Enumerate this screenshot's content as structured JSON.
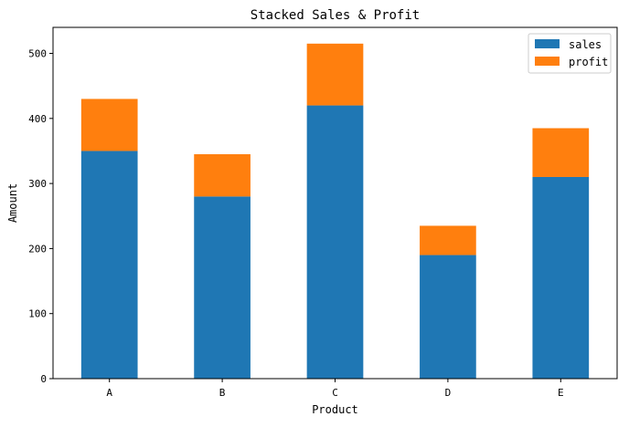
{
  "chart_data": {
    "type": "bar",
    "stacked": true,
    "title": "Stacked Sales & Profit",
    "xlabel": "Product",
    "ylabel": "Amount",
    "categories": [
      "A",
      "B",
      "C",
      "D",
      "E"
    ],
    "series": [
      {
        "name": "sales",
        "values": [
          350,
          280,
          420,
          190,
          310
        ],
        "color": "#1f77b4"
      },
      {
        "name": "profit",
        "values": [
          80,
          65,
          95,
          45,
          75
        ],
        "color": "#ff7f0e"
      }
    ],
    "ylim": [
      0,
      540
    ],
    "yticks": [
      0,
      100,
      200,
      300,
      400,
      500
    ],
    "grid": false,
    "legend_position": "top-right"
  }
}
